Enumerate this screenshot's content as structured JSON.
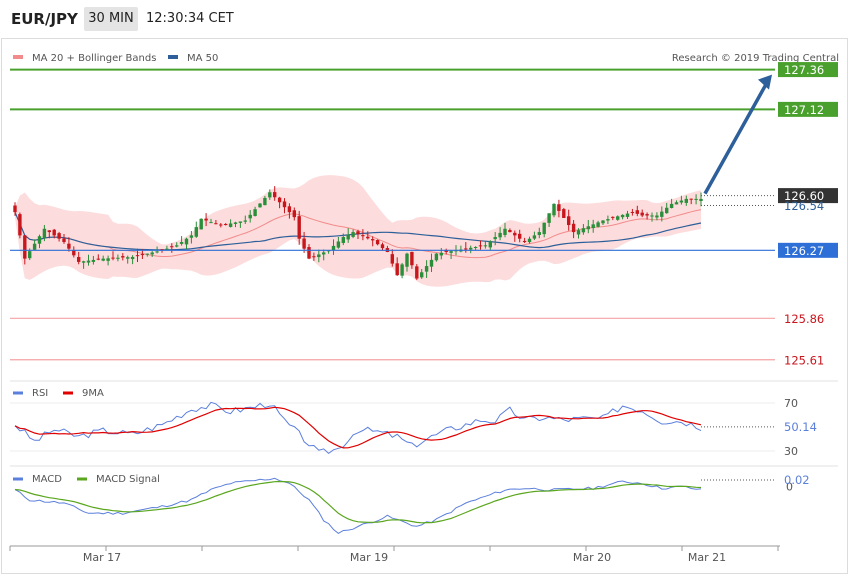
{
  "header": {
    "symbol": "EUR/JPY",
    "timeframe": "30 MIN",
    "time": "12:30:34 CET"
  },
  "copyright": "Research © 2019 Trading Central",
  "colors": {
    "bull": "#2a8f3a",
    "bear": "#c8161d",
    "ma20": "#f28b8b",
    "band_fill": "#fcdcdc",
    "ma50": "#2d5f9a",
    "resistance": "#4aa02c",
    "support": "#f5a3a3",
    "pivot": "#2d6fd6",
    "arrow": "#2d5f9a",
    "rsi": "#5b7fdc",
    "rsi_ma": "#e00000",
    "macd": "#5b7fdc",
    "macd_signal": "#5aa61e"
  },
  "chart_data": [
    {
      "type": "candlestick",
      "legend": [
        "MA 20 + Bollinger Bands",
        "MA 50"
      ],
      "ylim": [
        125.5,
        127.46
      ],
      "n_bars": 141,
      "levels": [
        {
          "value": 127.36,
          "label": "127.36",
          "kind": "resistance"
        },
        {
          "value": 127.12,
          "label": "127.12",
          "kind": "resistance"
        },
        {
          "value": 126.27,
          "label": "126.27",
          "kind": "pivot"
        },
        {
          "value": 125.86,
          "label": "125.86",
          "kind": "support"
        },
        {
          "value": 125.61,
          "label": "125.61",
          "kind": "support"
        }
      ],
      "last_price": {
        "value": 126.6,
        "label": "126.60"
      },
      "ma50_last": {
        "value": 126.54,
        "label": "126.54"
      },
      "projection": {
        "from": 126.6,
        "to": 127.36
      }
    },
    {
      "type": "line",
      "name": "RSI",
      "series": [
        {
          "name": "RSI"
        },
        {
          "name": "9MA"
        }
      ],
      "ylim": [
        20,
        85
      ],
      "ticks": [
        70,
        30
      ],
      "last": {
        "value": 50.14,
        "label": "50.14"
      }
    },
    {
      "type": "line",
      "name": "MACD",
      "series": [
        {
          "name": "MACD"
        },
        {
          "name": "MACD Signal"
        }
      ],
      "ylim": [
        -0.17,
        0.05
      ],
      "ticks": [
        0
      ],
      "last": {
        "value": 0.02,
        "label": "0.02"
      }
    }
  ],
  "x_axis": {
    "labels": [
      "Mar 17",
      "Mar 19",
      "Mar 20",
      "Mar 21"
    ]
  }
}
